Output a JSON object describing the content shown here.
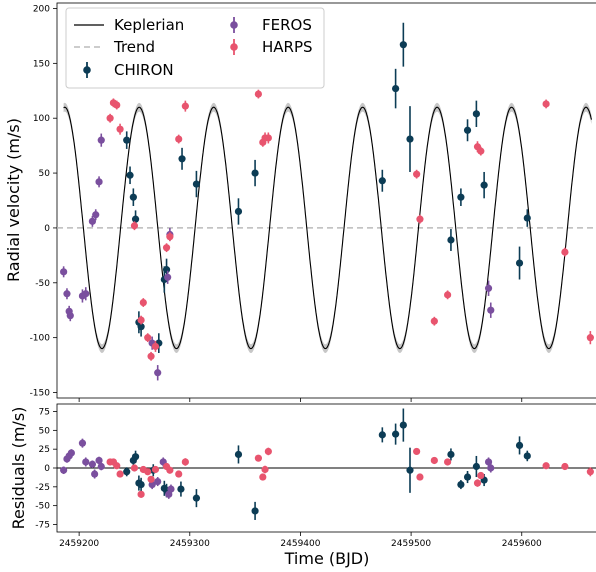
{
  "chart_data": [
    {
      "type": "scatter",
      "panel": "top",
      "xlabel": "",
      "ylabel": "Radial velocity (m/s)",
      "xlim": [
        2459180,
        2459668
      ],
      "ylim": [
        -155,
        205
      ],
      "yticks": [
        -150,
        -100,
        -50,
        0,
        50,
        100,
        150,
        200
      ],
      "ytick_labels": [
        "-150",
        "-100",
        "-50",
        "0",
        "50",
        "100",
        "150",
        "200"
      ],
      "grid": false,
      "legend": {
        "placement": "top-left",
        "entries": [
          "Keplerian",
          "Trend",
          "CHIRON",
          "FEROS",
          "HARPS"
        ]
      },
      "model": {
        "name": "Keplerian",
        "amplitude": 110,
        "period": 67.3,
        "phase_ref": 2459187,
        "x_start": 2459186,
        "x_end": 2459663,
        "color": "#000000",
        "band_color": "#b4b4b4"
      },
      "trend": {
        "name": "Trend",
        "value": 0,
        "color": "#bbbbbb"
      },
      "series": [
        {
          "name": "CHIRON",
          "color": "#0c3c55",
          "points": [
            {
              "x": 2459243,
              "y": 80,
              "e": 8
            },
            {
              "x": 2459246,
              "y": 48,
              "e": 8
            },
            {
              "x": 2459249,
              "y": 28,
              "e": 8
            },
            {
              "x": 2459251,
              "y": 8,
              "e": 8
            },
            {
              "x": 2459254,
              "y": -86,
              "e": 10
            },
            {
              "x": 2459256,
              "y": -90,
              "e": 9
            },
            {
              "x": 2459272,
              "y": -105,
              "e": 9
            },
            {
              "x": 2459277,
              "y": -47,
              "e": 12
            },
            {
              "x": 2459279,
              "y": -38,
              "e": 10
            },
            {
              "x": 2459293,
              "y": 63,
              "e": 10
            },
            {
              "x": 2459306,
              "y": 40,
              "e": 12
            },
            {
              "x": 2459344,
              "y": 15,
              "e": 12
            },
            {
              "x": 2459359,
              "y": 50,
              "e": 12
            },
            {
              "x": 2459474,
              "y": 43,
              "e": 10
            },
            {
              "x": 2459486,
              "y": 127,
              "e": 18
            },
            {
              "x": 2459493,
              "y": 167,
              "e": 20
            },
            {
              "x": 2459499,
              "y": 81,
              "e": 30
            },
            {
              "x": 2459536,
              "y": -11,
              "e": 10
            },
            {
              "x": 2459545,
              "y": 28,
              "e": 8
            },
            {
              "x": 2459551,
              "y": 89,
              "e": 10
            },
            {
              "x": 2459559,
              "y": 104,
              "e": 12
            },
            {
              "x": 2459566,
              "y": 39,
              "e": 12
            },
            {
              "x": 2459598,
              "y": -32,
              "e": 15
            },
            {
              "x": 2459605,
              "y": 9,
              "e": 8
            }
          ]
        },
        {
          "name": "FEROS",
          "color": "#7a4f9e",
          "points": [
            {
              "x": 2459186,
              "y": -40,
              "e": 5
            },
            {
              "x": 2459189,
              "y": -60,
              "e": 5
            },
            {
              "x": 2459191,
              "y": -76,
              "e": 5
            },
            {
              "x": 2459192,
              "y": -80,
              "e": 5
            },
            {
              "x": 2459203,
              "y": -62,
              "e": 6
            },
            {
              "x": 2459206,
              "y": -60,
              "e": 6
            },
            {
              "x": 2459212,
              "y": 6,
              "e": 5
            },
            {
              "x": 2459215,
              "y": 12,
              "e": 5
            },
            {
              "x": 2459218,
              "y": 42,
              "e": 5
            },
            {
              "x": 2459220,
              "y": 80,
              "e": 6
            },
            {
              "x": 2459266,
              "y": -105,
              "e": 6
            },
            {
              "x": 2459271,
              "y": -132,
              "e": 7
            },
            {
              "x": 2459280,
              "y": -45,
              "e": 6
            },
            {
              "x": 2459282,
              "y": -6,
              "e": 6
            },
            {
              "x": 2459570,
              "y": -55,
              "e": 7
            },
            {
              "x": 2459572,
              "y": -75,
              "e": 7
            }
          ]
        },
        {
          "name": "HARPS",
          "color": "#e8546e",
          "points": [
            {
              "x": 2459228,
              "y": 100,
              "e": 4
            },
            {
              "x": 2459231,
              "y": 114,
              "e": 4
            },
            {
              "x": 2459234,
              "y": 112,
              "e": 4
            },
            {
              "x": 2459237,
              "y": 90,
              "e": 5
            },
            {
              "x": 2459250,
              "y": 2,
              "e": 4
            },
            {
              "x": 2459256,
              "y": -84,
              "e": 4
            },
            {
              "x": 2459258,
              "y": -68,
              "e": 4
            },
            {
              "x": 2459262,
              "y": -100,
              "e": 4
            },
            {
              "x": 2459265,
              "y": -117,
              "e": 4
            },
            {
              "x": 2459269,
              "y": -108,
              "e": 5
            },
            {
              "x": 2459279,
              "y": -18,
              "e": 4
            },
            {
              "x": 2459282,
              "y": -8,
              "e": 4
            },
            {
              "x": 2459290,
              "y": 81,
              "e": 4
            },
            {
              "x": 2459296,
              "y": 111,
              "e": 5
            },
            {
              "x": 2459362,
              "y": 122,
              "e": 4
            },
            {
              "x": 2459366,
              "y": 78,
              "e": 4
            },
            {
              "x": 2459368,
              "y": 82,
              "e": 5
            },
            {
              "x": 2459371,
              "y": 82,
              "e": 5
            },
            {
              "x": 2459505,
              "y": 49,
              "e": 4
            },
            {
              "x": 2459508,
              "y": 8,
              "e": 4
            },
            {
              "x": 2459521,
              "y": -85,
              "e": 4
            },
            {
              "x": 2459533,
              "y": -61,
              "e": 4
            },
            {
              "x": 2459560,
              "y": 74,
              "e": 5
            },
            {
              "x": 2459563,
              "y": 70,
              "e": 4
            },
            {
              "x": 2459622,
              "y": 113,
              "e": 4
            },
            {
              "x": 2459639,
              "y": -22,
              "e": 4
            },
            {
              "x": 2459662,
              "y": -100,
              "e": 6
            }
          ]
        }
      ]
    },
    {
      "type": "scatter",
      "panel": "bottom",
      "xlabel": "Time (BJD)",
      "ylabel": "Residuals (m/s)",
      "xlim": [
        2459180,
        2459668
      ],
      "ylim": [
        -85,
        85
      ],
      "xticks": [
        2459200,
        2459300,
        2459400,
        2459500,
        2459600
      ],
      "xtick_labels": [
        "2459200",
        "2459300",
        "2459400",
        "2459500",
        "2459600"
      ],
      "yticks": [
        -75,
        -50,
        -25,
        0,
        25,
        50,
        75
      ],
      "ytick_labels": [
        "-75",
        "-50",
        "-25",
        "0",
        "25",
        "50",
        "75"
      ],
      "zero_line": 0,
      "series": [
        {
          "name": "CHIRON",
          "color": "#0c3c55",
          "points": [
            {
              "x": 2459243,
              "y": -5,
              "e": 6
            },
            {
              "x": 2459249,
              "y": 10,
              "e": 8
            },
            {
              "x": 2459251,
              "y": 15,
              "e": 8
            },
            {
              "x": 2459254,
              "y": -20,
              "e": 10
            },
            {
              "x": 2459256,
              "y": -22,
              "e": 9
            },
            {
              "x": 2459267,
              "y": -3,
              "e": 8
            },
            {
              "x": 2459277,
              "y": -27,
              "e": 10
            },
            {
              "x": 2459279,
              "y": -30,
              "e": 9
            },
            {
              "x": 2459292,
              "y": -28,
              "e": 10
            },
            {
              "x": 2459306,
              "y": -40,
              "e": 12
            },
            {
              "x": 2459344,
              "y": 18,
              "e": 12
            },
            {
              "x": 2459359,
              "y": -57,
              "e": 12
            },
            {
              "x": 2459474,
              "y": 44,
              "e": 10
            },
            {
              "x": 2459486,
              "y": 45,
              "e": 14
            },
            {
              "x": 2459493,
              "y": 57,
              "e": 22
            },
            {
              "x": 2459499,
              "y": -3,
              "e": 30
            },
            {
              "x": 2459536,
              "y": 18,
              "e": 8
            },
            {
              "x": 2459545,
              "y": -22,
              "e": 6
            },
            {
              "x": 2459551,
              "y": -12,
              "e": 8
            },
            {
              "x": 2459559,
              "y": 2,
              "e": 14
            },
            {
              "x": 2459566,
              "y": -16,
              "e": 8
            },
            {
              "x": 2459598,
              "y": 30,
              "e": 12
            },
            {
              "x": 2459605,
              "y": 16,
              "e": 7
            }
          ]
        },
        {
          "name": "FEROS",
          "color": "#7a4f9e",
          "points": [
            {
              "x": 2459186,
              "y": -3,
              "e": 5
            },
            {
              "x": 2459189,
              "y": 12,
              "e": 5
            },
            {
              "x": 2459191,
              "y": 16,
              "e": 5
            },
            {
              "x": 2459193,
              "y": 20,
              "e": 5
            },
            {
              "x": 2459203,
              "y": 33,
              "e": 6
            },
            {
              "x": 2459206,
              "y": 8,
              "e": 6
            },
            {
              "x": 2459212,
              "y": 5,
              "e": 5
            },
            {
              "x": 2459214,
              "y": -8,
              "e": 6
            },
            {
              "x": 2459218,
              "y": 10,
              "e": 5
            },
            {
              "x": 2459220,
              "y": 2,
              "e": 5
            },
            {
              "x": 2459266,
              "y": -22,
              "e": 6
            },
            {
              "x": 2459271,
              "y": -18,
              "e": 6
            },
            {
              "x": 2459276,
              "y": 8,
              "e": 6
            },
            {
              "x": 2459281,
              "y": -35,
              "e": 6
            },
            {
              "x": 2459283,
              "y": -28,
              "e": 6
            },
            {
              "x": 2459570,
              "y": 8,
              "e": 6
            },
            {
              "x": 2459572,
              "y": 0,
              "e": 6
            }
          ]
        },
        {
          "name": "HARPS",
          "color": "#e8546e",
          "points": [
            {
              "x": 2459228,
              "y": 8,
              "e": 4
            },
            {
              "x": 2459231,
              "y": 8,
              "e": 4
            },
            {
              "x": 2459234,
              "y": 3,
              "e": 4
            },
            {
              "x": 2459237,
              "y": -8,
              "e": 4
            },
            {
              "x": 2459250,
              "y": 0,
              "e": 4
            },
            {
              "x": 2459256,
              "y": -35,
              "e": 4
            },
            {
              "x": 2459258,
              "y": -2,
              "e": 4
            },
            {
              "x": 2459262,
              "y": -5,
              "e": 4
            },
            {
              "x": 2459265,
              "y": -15,
              "e": 4
            },
            {
              "x": 2459269,
              "y": -2,
              "e": 4
            },
            {
              "x": 2459279,
              "y": 2,
              "e": 4
            },
            {
              "x": 2459282,
              "y": -3,
              "e": 4
            },
            {
              "x": 2459290,
              "y": -8,
              "e": 4
            },
            {
              "x": 2459296,
              "y": 8,
              "e": 5
            },
            {
              "x": 2459362,
              "y": 13,
              "e": 4
            },
            {
              "x": 2459366,
              "y": -12,
              "e": 4
            },
            {
              "x": 2459368,
              "y": -2,
              "e": 5
            },
            {
              "x": 2459371,
              "y": 22,
              "e": 5
            },
            {
              "x": 2459505,
              "y": 22,
              "e": 4
            },
            {
              "x": 2459508,
              "y": -12,
              "e": 4
            },
            {
              "x": 2459521,
              "y": 10,
              "e": 4
            },
            {
              "x": 2459533,
              "y": 8,
              "e": 4
            },
            {
              "x": 2459560,
              "y": -20,
              "e": 5
            },
            {
              "x": 2459563,
              "y": -10,
              "e": 4
            },
            {
              "x": 2459622,
              "y": 3,
              "e": 4
            },
            {
              "x": 2459639,
              "y": 2,
              "e": 4
            },
            {
              "x": 2459662,
              "y": -5,
              "e": 6
            }
          ]
        }
      ]
    }
  ]
}
